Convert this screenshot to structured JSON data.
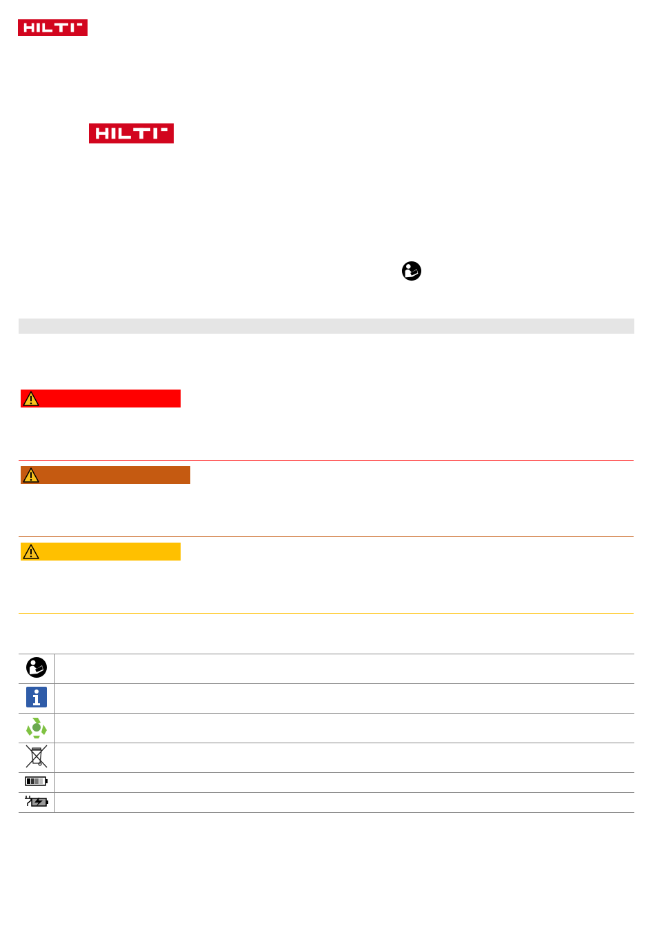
{
  "header": {
    "logo": "HILTI",
    "logo_color": "#d2051e"
  },
  "cover": {
    "logo": "HILTI",
    "manual_icon": "read-manual-icon"
  },
  "section_band_color": "#e5e5e5",
  "warnings": [
    {
      "level": "danger",
      "color": "#ff0000",
      "icon": "warning-triangle-icon"
    },
    {
      "level": "warning",
      "color": "#c55a11",
      "icon": "warning-triangle-icon"
    },
    {
      "level": "caution",
      "color": "#ffc000",
      "icon": "warning-triangle-icon"
    }
  ],
  "symbols": [
    {
      "icon": "read-manual-icon"
    },
    {
      "icon": "info-icon"
    },
    {
      "icon": "recycle-icon"
    },
    {
      "icon": "crossed-bin-icon"
    },
    {
      "icon": "battery-icon"
    },
    {
      "icon": "charger-icon"
    }
  ]
}
